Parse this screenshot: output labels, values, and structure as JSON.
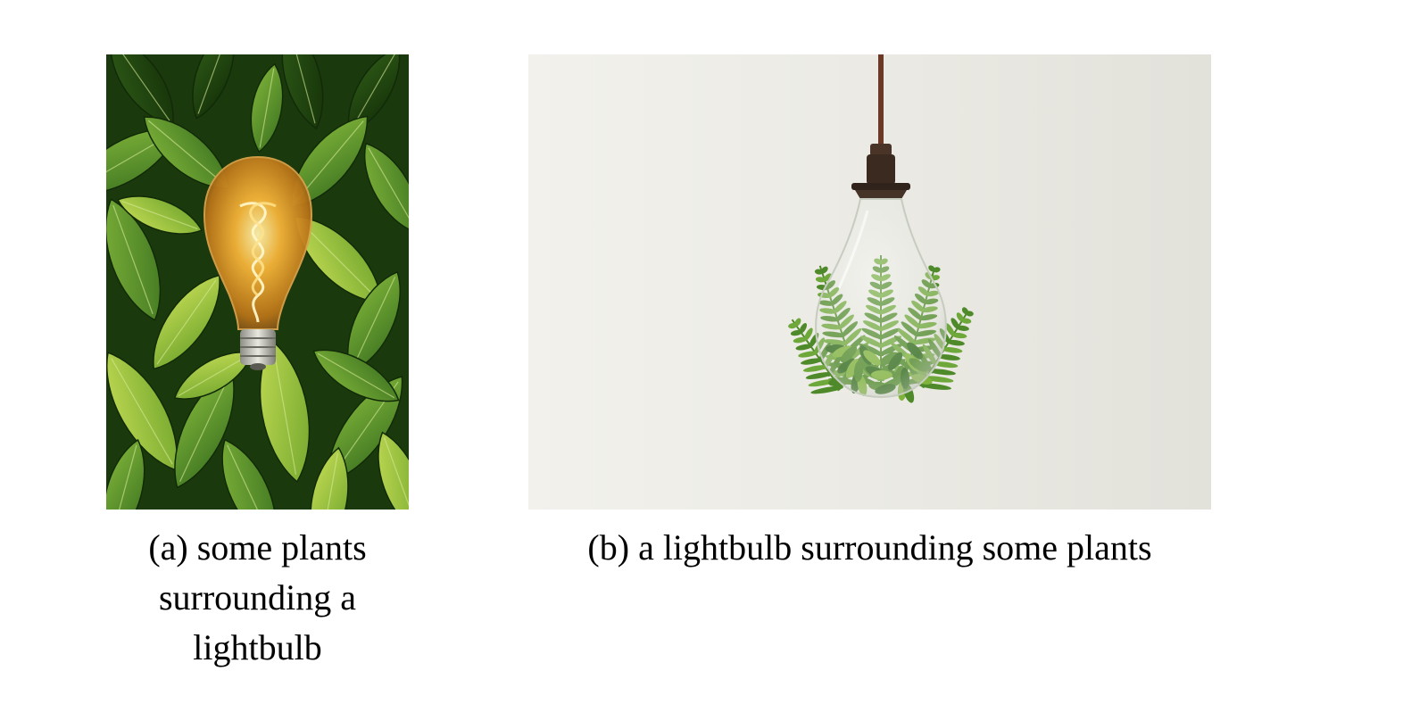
{
  "figure": {
    "subfigures": [
      {
        "label": "(a)",
        "caption": "some plants surrounding a lightbulb",
        "image_subject": "lightbulb-on-leaves-photo"
      },
      {
        "label": "(b)",
        "caption": "a lightbulb surrounding some plants",
        "image_subject": "plants-inside-lightbulb-photo"
      }
    ]
  },
  "captions": {
    "a": "(a) some plants surrounding a lightbulb",
    "b": "(b) a lightbulb surrounding some plants"
  },
  "colors": {
    "leaf_dark": "#1f3d12",
    "leaf_mid": "#4f8a2a",
    "leaf_light": "#9cc63f",
    "bulb_glow": "#f6b53a",
    "wall": "#ecebe5",
    "cord": "#6b3a26"
  }
}
